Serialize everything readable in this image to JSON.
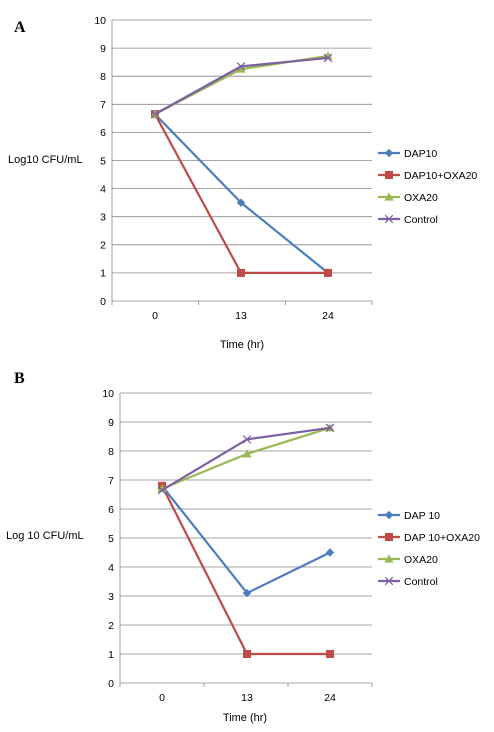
{
  "chart_data": [
    {
      "type": "line",
      "panel_label": "A",
      "categories": [
        "0",
        "13",
        "24"
      ],
      "ylabel": "Log10 CFU/mL",
      "xlabel": "Time (hr)",
      "ylim": [
        0,
        10
      ],
      "yticks": [
        "0",
        "1",
        "2",
        "3",
        "4",
        "5",
        "6",
        "7",
        "8",
        "9",
        "10"
      ],
      "grid": "horizontal",
      "legend_position": "right",
      "series": [
        {
          "name": "DAP10",
          "values": [
            6.65,
            3.5,
            1.0
          ],
          "color": "#4a7ebb",
          "marker": "diamond"
        },
        {
          "name": "DAP10+OXA20",
          "values": [
            6.65,
            1.0,
            1.0
          ],
          "color": "#be4b48",
          "marker": "square"
        },
        {
          "name": "OXA20",
          "values": [
            6.65,
            8.25,
            8.72
          ],
          "color": "#98b954",
          "marker": "triangle"
        },
        {
          "name": "Control",
          "values": [
            6.65,
            8.35,
            8.65
          ],
          "color": "#7d60a0",
          "marker": "x"
        }
      ]
    },
    {
      "type": "line",
      "panel_label": "B",
      "categories": [
        "0",
        "13",
        "24"
      ],
      "ylabel": "Log 10 CFU/mL",
      "xlabel": "Time (hr)",
      "ylim": [
        0,
        10
      ],
      "yticks": [
        "0",
        "1",
        "2",
        "3",
        "4",
        "5",
        "6",
        "7",
        "8",
        "9",
        "10"
      ],
      "grid": "horizontal",
      "legend_position": "right",
      "series": [
        {
          "name": "DAP 10",
          "values": [
            6.8,
            3.1,
            4.5
          ],
          "color": "#4a7ebb",
          "marker": "diamond"
        },
        {
          "name": "DAP 10+OXA20",
          "values": [
            6.8,
            1.0,
            1.0
          ],
          "color": "#be4b48",
          "marker": "square"
        },
        {
          "name": "OXA20",
          "values": [
            6.7,
            7.9,
            8.8
          ],
          "color": "#98b954",
          "marker": "triangle"
        },
        {
          "name": "Control",
          "values": [
            6.65,
            8.4,
            8.8
          ],
          "color": "#7d60a0",
          "marker": "x"
        }
      ]
    }
  ]
}
